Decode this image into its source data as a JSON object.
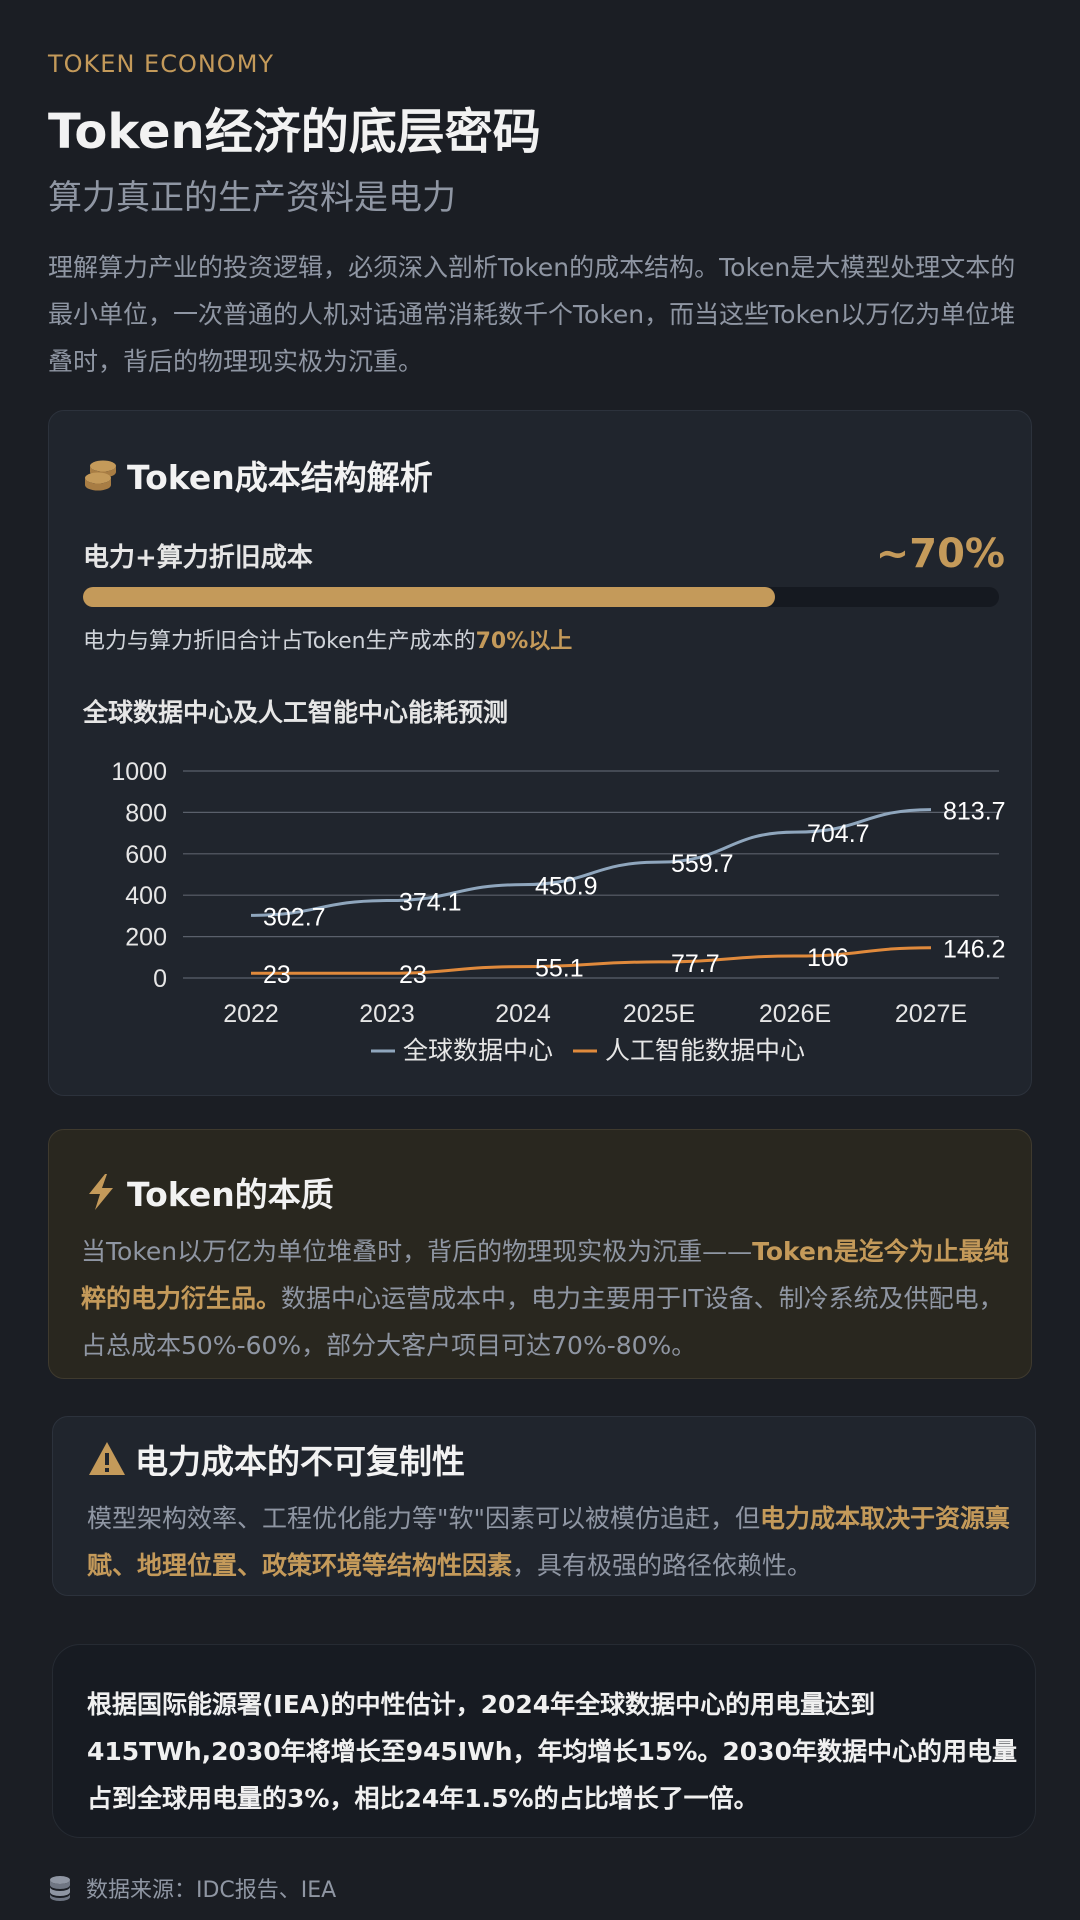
{
  "header": {
    "eyebrow": "TOKEN ECONOMY",
    "title": "Token经济的底层密码",
    "subtitle": "算力真正的生产资料是电力",
    "intro": "理解算力产业的投资逻辑，必须深入剖析Token的成本结构。Token是大模型处理文本的最小单位，一次普通的人机对话通常消耗数千个Token，而当这些Token以万亿为单位堆叠时，背后的物理现实极为沉重。"
  },
  "cost_card": {
    "title": "Token成本结构解析",
    "icon": "coins-icon",
    "metric_label": "电力+算力折旧成本",
    "metric_value": "~70%",
    "progress": 0.755,
    "note_prefix": "电力与算力折旧合计占Token生产成本的",
    "note_highlight": "70%以上",
    "chart_title": "全球数据中心及人工智能中心能耗预测"
  },
  "chart_data": {
    "type": "line",
    "title": "全球数据中心及人工智能中心能耗预测",
    "categories": [
      "2022",
      "2023",
      "2024",
      "2025E",
      "2026E",
      "2027E"
    ],
    "series": [
      {
        "name": "全球数据中心",
        "values": [
          302.7,
          374.1,
          450.9,
          559.7,
          704.7,
          813.7
        ],
        "color": "#8fa6bd"
      },
      {
        "name": "人工智能数据中心",
        "values": [
          23,
          23,
          55.1,
          77.7,
          106,
          146.2
        ],
        "color": "#e08a3c"
      }
    ],
    "ylim": [
      0,
      1000
    ],
    "yticks": [
      0,
      200,
      400,
      600,
      800,
      1000
    ],
    "grid": true,
    "legend": "bottom"
  },
  "essence_card": {
    "title": "Token的本质",
    "icon": "lightning-icon",
    "text_a": "当Token以万亿为单位堆叠时，背后的物理现实极为沉重——",
    "text_b": "Token是迄今为止最纯粹的电力衍生品。",
    "text_c": "数据中心运营成本中，电力主要用于IT设备、制冷系统及供配电，占总成本50%-60%，部分大客户项目可达70%-80%。"
  },
  "warning_card": {
    "title": "电力成本的不可复制性",
    "icon": "warning-icon",
    "text_a": "模型架构效率、工程优化能力等\"软\"因素可以被模仿追赶，但",
    "text_b": "电力成本取决于资源禀赋、地理位置、政策环境等结构性因素",
    "text_c": "，具有极强的路径依赖性。"
  },
  "iea_card": {
    "text": "根据国际能源署(IEA)的中性估计，2024年全球数据中心的用电量达到415TWh,2030年将增长至945IWh，年均增长15%。2030年数据中心的用电量占到全球用电量的3%，相比24年1.5%的占比增长了一倍。"
  },
  "footer": {
    "icon": "database-icon",
    "source": "数据来源：IDC报告、IEA"
  },
  "colors": {
    "accent": "#c49a5a",
    "background": "#1b1e24",
    "card": "#20252d",
    "muted_text": "#8f96a3"
  }
}
